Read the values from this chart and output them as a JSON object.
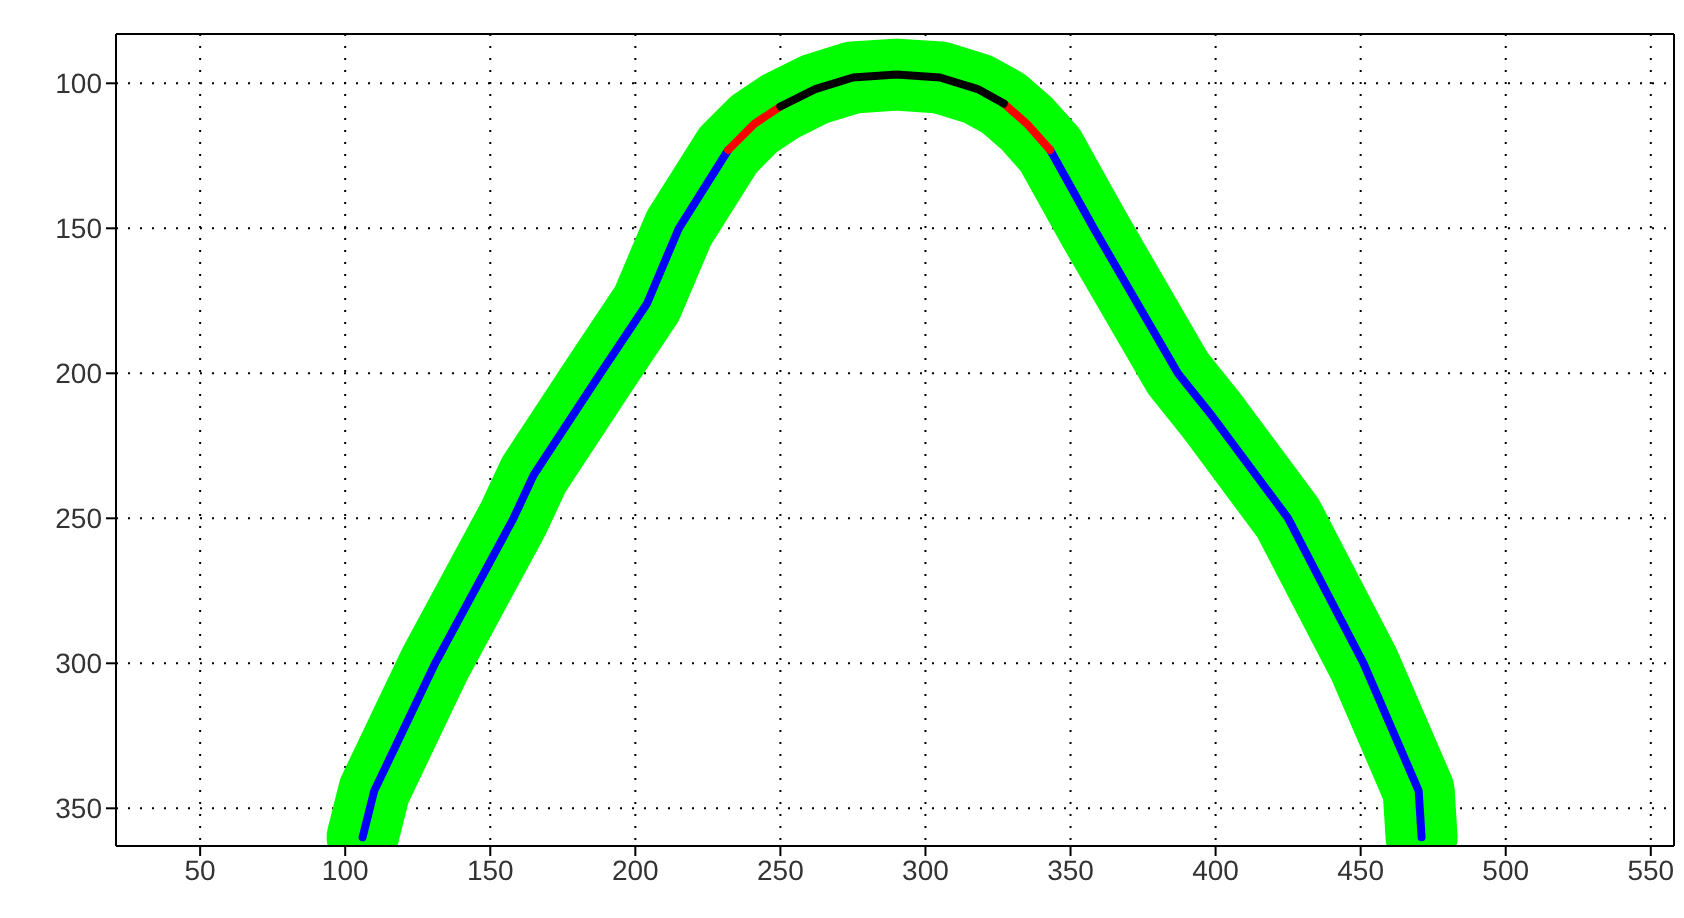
{
  "chart_data": {
    "type": "line",
    "xlim": [
      21,
      558
    ],
    "ylim": [
      363,
      83
    ],
    "xticks": [
      50,
      100,
      150,
      200,
      250,
      300,
      350,
      400,
      450,
      500,
      550
    ],
    "yticks": [
      100,
      150,
      200,
      250,
      300,
      350
    ],
    "grid": true,
    "marker": "none",
    "line_style": "solid",
    "series": [
      {
        "color": "#00ff00",
        "x": [
          106,
          110,
          131,
          158,
          165,
          188,
          204,
          215,
          232,
          241,
          250,
          262,
          275,
          290,
          305,
          318,
          327,
          335,
          343,
          358,
          387,
          399,
          425,
          451,
          470,
          471
        ],
        "values": [
          360,
          344,
          300,
          250,
          235,
          200,
          176,
          150,
          123,
          114,
          108,
          102,
          98,
          97,
          98,
          102,
          107,
          114,
          123,
          150,
          200,
          215,
          250,
          300,
          344,
          360
        ]
      },
      {
        "color": "#0000ff",
        "x": [
          106,
          110,
          131,
          158,
          165,
          188,
          204,
          215,
          232,
          290,
          343,
          358,
          387,
          399,
          425,
          451,
          470,
          471
        ],
        "values": [
          360,
          344,
          300,
          250,
          235,
          200,
          176,
          150,
          123,
          null,
          123,
          150,
          200,
          215,
          250,
          300,
          344,
          360
        ]
      },
      {
        "color": "#ff0000",
        "x": [
          232,
          241,
          250,
          290,
          327,
          335,
          343
        ],
        "values": [
          123,
          114,
          108,
          null,
          107,
          114,
          123
        ]
      },
      {
        "color": "#000000",
        "x": [
          250,
          262,
          275,
          290,
          305,
          318,
          327
        ],
        "values": [
          108,
          102,
          98,
          97,
          98,
          102,
          107
        ]
      }
    ]
  }
}
